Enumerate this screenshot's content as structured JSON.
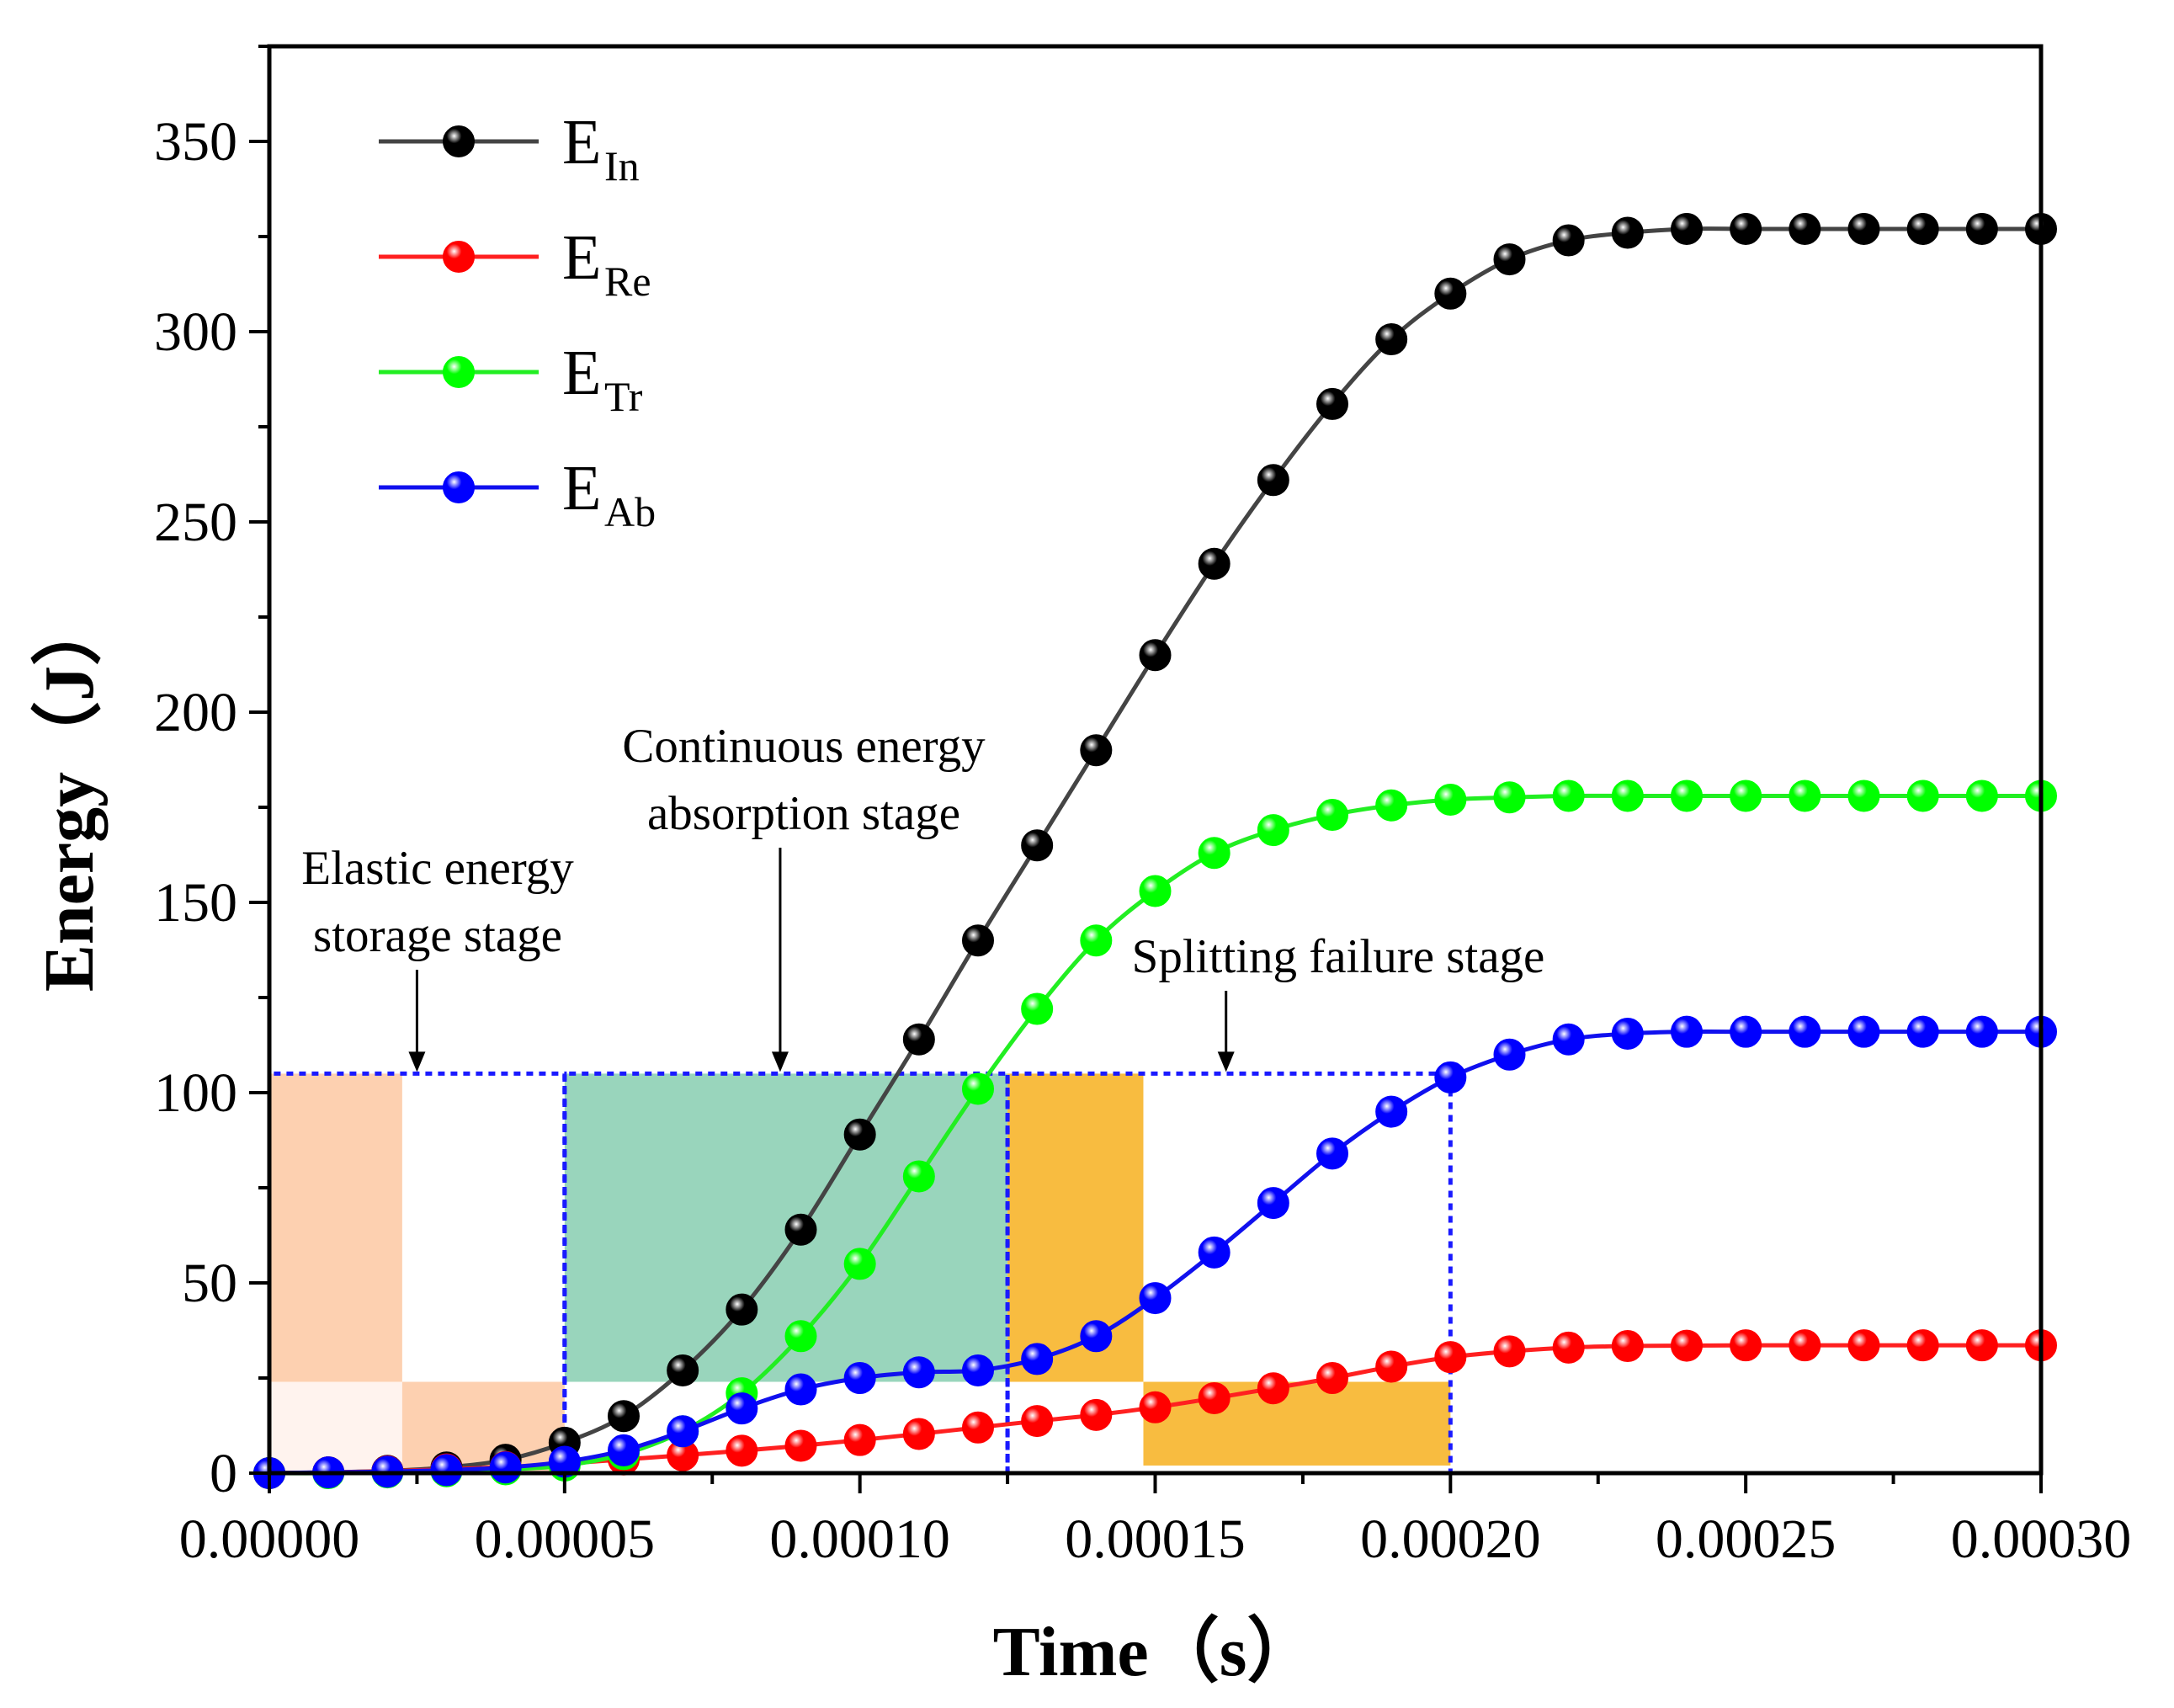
{
  "chart_data": {
    "type": "line",
    "xlabel": "Time（s）",
    "ylabel": "Energy（J）",
    "xlim": [
      0,
      0.0003
    ],
    "ylim": [
      0,
      375
    ],
    "x_ticks": [
      0,
      5e-05,
      0.0001,
      0.00015,
      0.0002,
      0.00025,
      0.0003
    ],
    "x_tick_labels": [
      "0.00000",
      "0.00005",
      "0.00010",
      "0.00015",
      "0.00020",
      "0.00025",
      "0.00030"
    ],
    "y_ticks": [
      0,
      50,
      100,
      150,
      200,
      250,
      300,
      350
    ],
    "y_tick_labels": [
      "0",
      "50",
      "100",
      "150",
      "200",
      "250",
      "300",
      "350"
    ],
    "x": [
      0,
      1e-05,
      2e-05,
      3e-05,
      4e-05,
      5e-05,
      6e-05,
      7e-05,
      8e-05,
      9e-05,
      0.0001,
      0.00011,
      0.00012,
      0.00013,
      0.00014,
      0.00015,
      0.00016,
      0.00017,
      0.00018,
      0.00019,
      0.0002,
      0.00021,
      0.00022,
      0.00023,
      0.00024,
      0.00025,
      0.00026,
      0.00027,
      0.00028,
      0.00029,
      0.0003
    ],
    "series": [
      {
        "name": "E",
        "subscript": "In",
        "color": "#000000",
        "line_color": "#444444",
        "values": [
          0,
          0.2,
          0.6,
          1.5,
          3.5,
          8,
          15,
          27,
          43,
          64,
          89,
          114,
          140,
          165,
          190,
          215,
          239,
          261,
          281,
          298,
          310,
          319,
          324,
          326,
          327,
          327,
          327,
          327,
          327,
          327,
          327
        ]
      },
      {
        "name": "E",
        "subscript": "Re",
        "color": "#ff0000",
        "line_color": "#ff2020",
        "values": [
          0,
          0.2,
          0.5,
          1,
          1.6,
          2.5,
          3.6,
          4.7,
          5.9,
          7.2,
          8.7,
          10.3,
          12,
          13.7,
          15.3,
          17.3,
          19.7,
          22.3,
          25,
          28,
          30.5,
          32,
          33,
          33.4,
          33.5,
          33.6,
          33.6,
          33.6,
          33.6,
          33.6,
          33.6
        ]
      },
      {
        "name": "E",
        "subscript": "Tr",
        "color": "#00ff00",
        "line_color": "#22ee22",
        "values": [
          0,
          0,
          0.2,
          0.5,
          1,
          2,
          5,
          11,
          21,
          36,
          55,
          78,
          101,
          122,
          140,
          153,
          163,
          169,
          173,
          175.5,
          177,
          177.6,
          178,
          178,
          178,
          178,
          178,
          178,
          178,
          178,
          178
        ]
      },
      {
        "name": "E",
        "subscript": "Ab",
        "color": "#0000ff",
        "line_color": "#1010ee",
        "values": [
          0,
          0.2,
          0.4,
          0.8,
          1.5,
          3,
          6,
          11,
          17,
          22,
          25,
          26.5,
          27,
          30,
          36,
          46,
          58,
          71,
          84,
          95,
          104,
          110,
          114,
          115.5,
          116,
          116,
          116,
          116,
          116,
          116,
          116
        ]
      }
    ],
    "annotations": [
      {
        "lines": [
          "Elastic energy",
          "storage stage"
        ],
        "x_start": 0,
        "x_end": 5e-05,
        "arrow_x": 2.5e-05
      },
      {
        "lines": [
          "Continuous energy",
          "absorption stage"
        ],
        "x_start": 5e-05,
        "x_end": 0.000125,
        "arrow_x": 8.65e-05
      },
      {
        "lines": [
          "Splitting failure stage"
        ],
        "x_start": 0.000125,
        "x_end": 0.0002,
        "arrow_x": 0.000162
      }
    ],
    "stage_box_top": 105,
    "shaded_regions": [
      {
        "x0": 0,
        "x1": 2.25e-05,
        "y0": 24,
        "y1": 105,
        "color": "#fdd0b0"
      },
      {
        "x0": 0,
        "x1": 2.25e-05,
        "y0": 0,
        "y1": 24,
        "color": "#fff3ee"
      },
      {
        "x0": 2.25e-05,
        "x1": 5e-05,
        "y0": 0,
        "y1": 24,
        "color": "#fdd0b0"
      },
      {
        "x0": 5e-05,
        "x1": 0.000125,
        "y0": 24,
        "y1": 105,
        "color": "#99d5bc"
      },
      {
        "x0": 0.000125,
        "x1": 0.000148,
        "y0": 24,
        "y1": 105,
        "color": "#f8bc40"
      },
      {
        "x0": 0.000148,
        "x1": 0.0002,
        "y0": 2,
        "y1": 24,
        "color": "#f8bc40"
      }
    ],
    "legend_position": "top-left"
  }
}
